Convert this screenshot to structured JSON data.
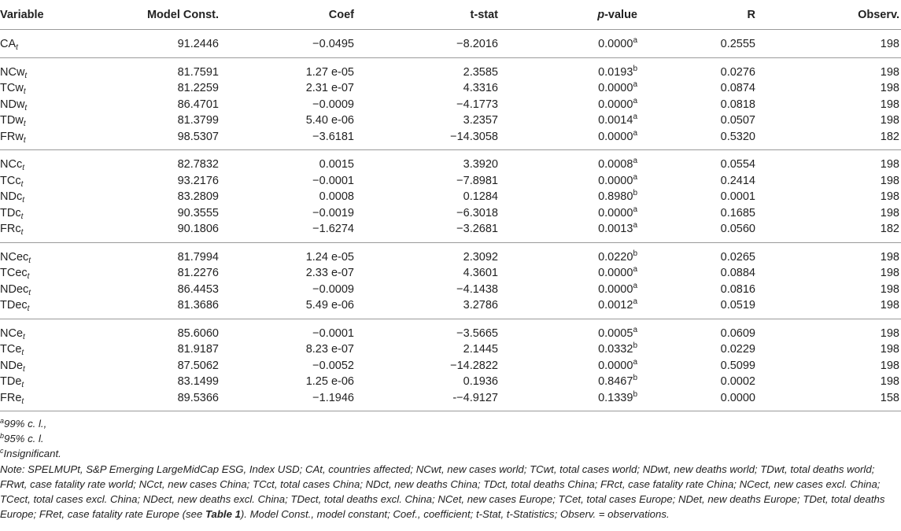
{
  "table": {
    "headers": [
      {
        "text": "Variable"
      },
      {
        "text": "Model Const."
      },
      {
        "text": "Coef"
      },
      {
        "text": "t-stat"
      },
      {
        "pre": "p",
        "text": "-value"
      },
      {
        "text": "R"
      },
      {
        "text": "Observ."
      }
    ],
    "groups": [
      [
        {
          "var": "CA",
          "sub": "t",
          "cells": [
            "91.2446",
            "−0.0495",
            "−8.2016",
            "0.0000",
            "0.2555",
            "198"
          ],
          "sup": "a"
        }
      ],
      [
        {
          "var": "NCw",
          "sub": "t",
          "cells": [
            "81.7591",
            "1.27 e-05",
            "2.3585",
            "0.0193",
            "0.0276",
            "198"
          ],
          "sup": "b"
        },
        {
          "var": "TCw",
          "sub": "t",
          "cells": [
            "81.2259",
            "2.31 e-07",
            "4.3316",
            "0.0000",
            "0.0874",
            "198"
          ],
          "sup": "a"
        },
        {
          "var": "NDw",
          "sub": "t",
          "cells": [
            "86.4701",
            "−0.0009",
            "−4.1773",
            "0.0000",
            "0.0818",
            "198"
          ],
          "sup": "a"
        },
        {
          "var": "TDw",
          "sub": "t",
          "cells": [
            "81.3799",
            "5.40 e-06",
            "3.2357",
            "0.0014",
            "0.0507",
            "198"
          ],
          "sup": "a"
        },
        {
          "var": "FRw",
          "sub": "t",
          "cells": [
            "98.5307",
            "−3.6181",
            "−14.3058",
            "0.0000",
            "0.5320",
            "182"
          ],
          "sup": "a"
        }
      ],
      [
        {
          "var": "NCc",
          "sub": "t",
          "cells": [
            "82.7832",
            "0.0015",
            "3.3920",
            "0.0008",
            "0.0554",
            "198"
          ],
          "sup": "a"
        },
        {
          "var": "TCc",
          "sub": "t",
          "cells": [
            "93.2176",
            "−0.0001",
            "−7.8981",
            "0.0000",
            "0.2414",
            "198"
          ],
          "sup": "a"
        },
        {
          "var": "NDc",
          "sub": "t",
          "cells": [
            "83.2809",
            "0.0008",
            "0.1284",
            "0.8980",
            "0.0001",
            "198"
          ],
          "sup": "b"
        },
        {
          "var": "TDc",
          "sub": "t",
          "cells": [
            "90.3555",
            "−0.0019",
            "−6.3018",
            "0.0000",
            "0.1685",
            "198"
          ],
          "sup": "a"
        },
        {
          "var": "FRc",
          "sub": "t",
          "cells": [
            "90.1806",
            "−1.6274",
            "−3.2681",
            "0.0013",
            "0.0560",
            "182"
          ],
          "sup": "a"
        }
      ],
      [
        {
          "var": "NCec",
          "sub": "t",
          "cells": [
            "81.7994",
            "1.24 e-05",
            "2.3092",
            "0.0220",
            "0.0265",
            "198"
          ],
          "sup": "b"
        },
        {
          "var": "TCec",
          "sub": "t",
          "cells": [
            "81.2276",
            "2.33 e-07",
            "4.3601",
            "0.0000",
            "0.0884",
            "198"
          ],
          "sup": "a"
        },
        {
          "var": "NDec",
          "sub": "t",
          "cells": [
            "86.4453",
            "−0.0009",
            "−4.1438",
            "0.0000",
            "0.0816",
            "198"
          ],
          "sup": "a"
        },
        {
          "var": "TDec",
          "sub": "t",
          "cells": [
            "81.3686",
            "5.49 e-06",
            "3.2786",
            "0.0012",
            "0.0519",
            "198"
          ],
          "sup": "a"
        }
      ],
      [
        {
          "var": "NCe",
          "sub": "t",
          "cells": [
            "85.6060",
            "−0.0001",
            "−3.5665",
            "0.0005",
            "0.0609",
            "198"
          ],
          "sup": "a"
        },
        {
          "var": "TCe",
          "sub": "t",
          "cells": [
            "81.9187",
            "8.23 e-07",
            "2.1445",
            "0.0332",
            "0.0229",
            "198"
          ],
          "sup": "b"
        },
        {
          "var": "NDe",
          "sub": "t",
          "cells": [
            "87.5062",
            "−0.0052",
            "−14.2822",
            "0.0000",
            "0.5099",
            "198"
          ],
          "sup": "a"
        },
        {
          "var": "TDe",
          "sub": "t",
          "cells": [
            "83.1499",
            "1.25 e-06",
            "0.1936",
            "0.8467",
            "0.0002",
            "198"
          ],
          "sup": "b"
        },
        {
          "var": "FRe",
          "sub": "t",
          "cells": [
            "89.5366",
            "−1.1946",
            "-−4.9127",
            "0.1339",
            "0.0000",
            "158"
          ],
          "sup": "b"
        }
      ]
    ]
  },
  "footnotes": [
    {
      "sup": "a",
      "text": "99% c. l.,"
    },
    {
      "sup": "b",
      "text": "95% c. l."
    },
    {
      "sup": "c",
      "text": "Insignificant."
    }
  ],
  "note": {
    "before": "Note: SPELMUPt, S&P Emerging LargeMidCap ESG, Index USD; CAt, countries affected; NCwt, new cases world; TCwt, total cases world; NDwt, new deaths world; TDwt, total deaths world; FRwt, case fatality rate world; NCct, new cases China; TCct, total cases China; NDct, new deaths China; TDct, total deaths China; FRct, case fatality rate China; NCect, new cases excl. China; TCect, total cases excl. China; NDect, new deaths excl. China; TDect, total deaths excl. China; NCet, new cases Europe; TCet, total cases Europe; NDet, new deaths Europe; TDet, total deaths Europe; FRet, case fatality rate Europe (see ",
    "ref": "Table 1",
    "after": "). Model Const., model constant; Coef., coefficient; t-Stat, t-Statistics; Observ. = observations."
  }
}
